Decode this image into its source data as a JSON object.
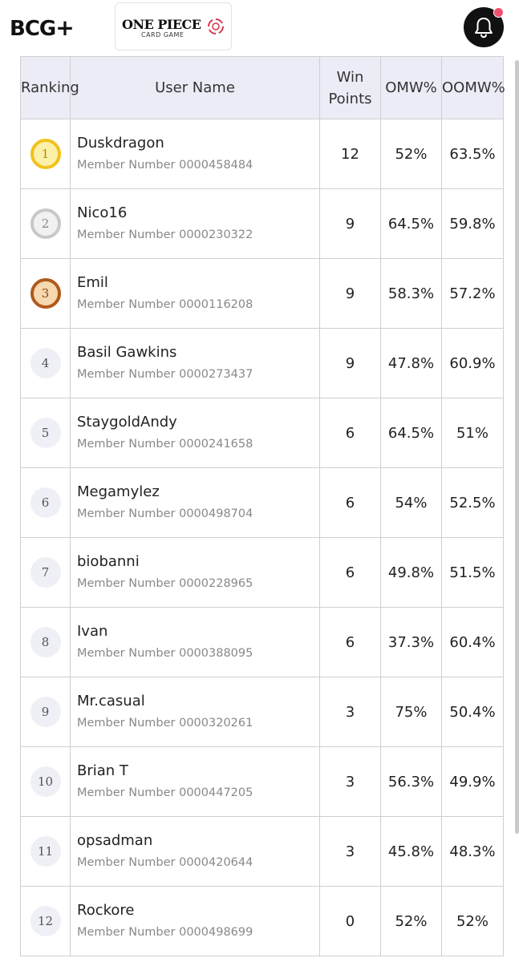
{
  "header": {
    "brand_logo": "B",
    "brand_logo_rest": "CG",
    "brand_plus": "+",
    "game_logo_title": "ONE PIECE",
    "game_logo_sub": "CARD GAME",
    "bell_icon": "bell-icon",
    "accent_color": "#f0506e"
  },
  "table": {
    "headers": {
      "ranking": "Ranking",
      "user_name": "User Name",
      "win_points": "Win Points",
      "omw": "OMW%",
      "oomw": "OOMW%"
    },
    "rows": [
      {
        "rank": "1",
        "name": "Duskdragon",
        "member": "Member Number 0000458484",
        "points": "12",
        "omw": "52%",
        "oomw": "63.5%",
        "medal": "gold"
      },
      {
        "rank": "2",
        "name": "Nico16",
        "member": "Member Number 0000230322",
        "points": "9",
        "omw": "64.5%",
        "oomw": "59.8%",
        "medal": "silver"
      },
      {
        "rank": "3",
        "name": "Emil",
        "member": "Member Number 0000116208",
        "points": "9",
        "omw": "58.3%",
        "oomw": "57.2%",
        "medal": "bronze"
      },
      {
        "rank": "4",
        "name": "Basil Gawkins",
        "member": "Member Number 0000273437",
        "points": "9",
        "omw": "47.8%",
        "oomw": "60.9%",
        "medal": ""
      },
      {
        "rank": "5",
        "name": "StaygoldAndy",
        "member": "Member Number 0000241658",
        "points": "6",
        "omw": "64.5%",
        "oomw": "51%",
        "medal": ""
      },
      {
        "rank": "6",
        "name": "Megamylez",
        "member": "Member Number 0000498704",
        "points": "6",
        "omw": "54%",
        "oomw": "52.5%",
        "medal": ""
      },
      {
        "rank": "7",
        "name": "biobanni",
        "member": "Member Number 0000228965",
        "points": "6",
        "omw": "49.8%",
        "oomw": "51.5%",
        "medal": ""
      },
      {
        "rank": "8",
        "name": "Ivan",
        "member": "Member Number 0000388095",
        "points": "6",
        "omw": "37.3%",
        "oomw": "60.4%",
        "medal": ""
      },
      {
        "rank": "9",
        "name": "Mr.casual",
        "member": "Member Number 0000320261",
        "points": "3",
        "omw": "75%",
        "oomw": "50.4%",
        "medal": ""
      },
      {
        "rank": "10",
        "name": "Brian T",
        "member": "Member Number 0000447205",
        "points": "3",
        "omw": "56.3%",
        "oomw": "49.9%",
        "medal": ""
      },
      {
        "rank": "11",
        "name": "opsadman",
        "member": "Member Number 0000420644",
        "points": "3",
        "omw": "45.8%",
        "oomw": "48.3%",
        "medal": ""
      },
      {
        "rank": "12",
        "name": "Rockore",
        "member": "Member Number 0000498699",
        "points": "0",
        "omw": "52%",
        "oomw": "52%",
        "medal": ""
      }
    ]
  }
}
